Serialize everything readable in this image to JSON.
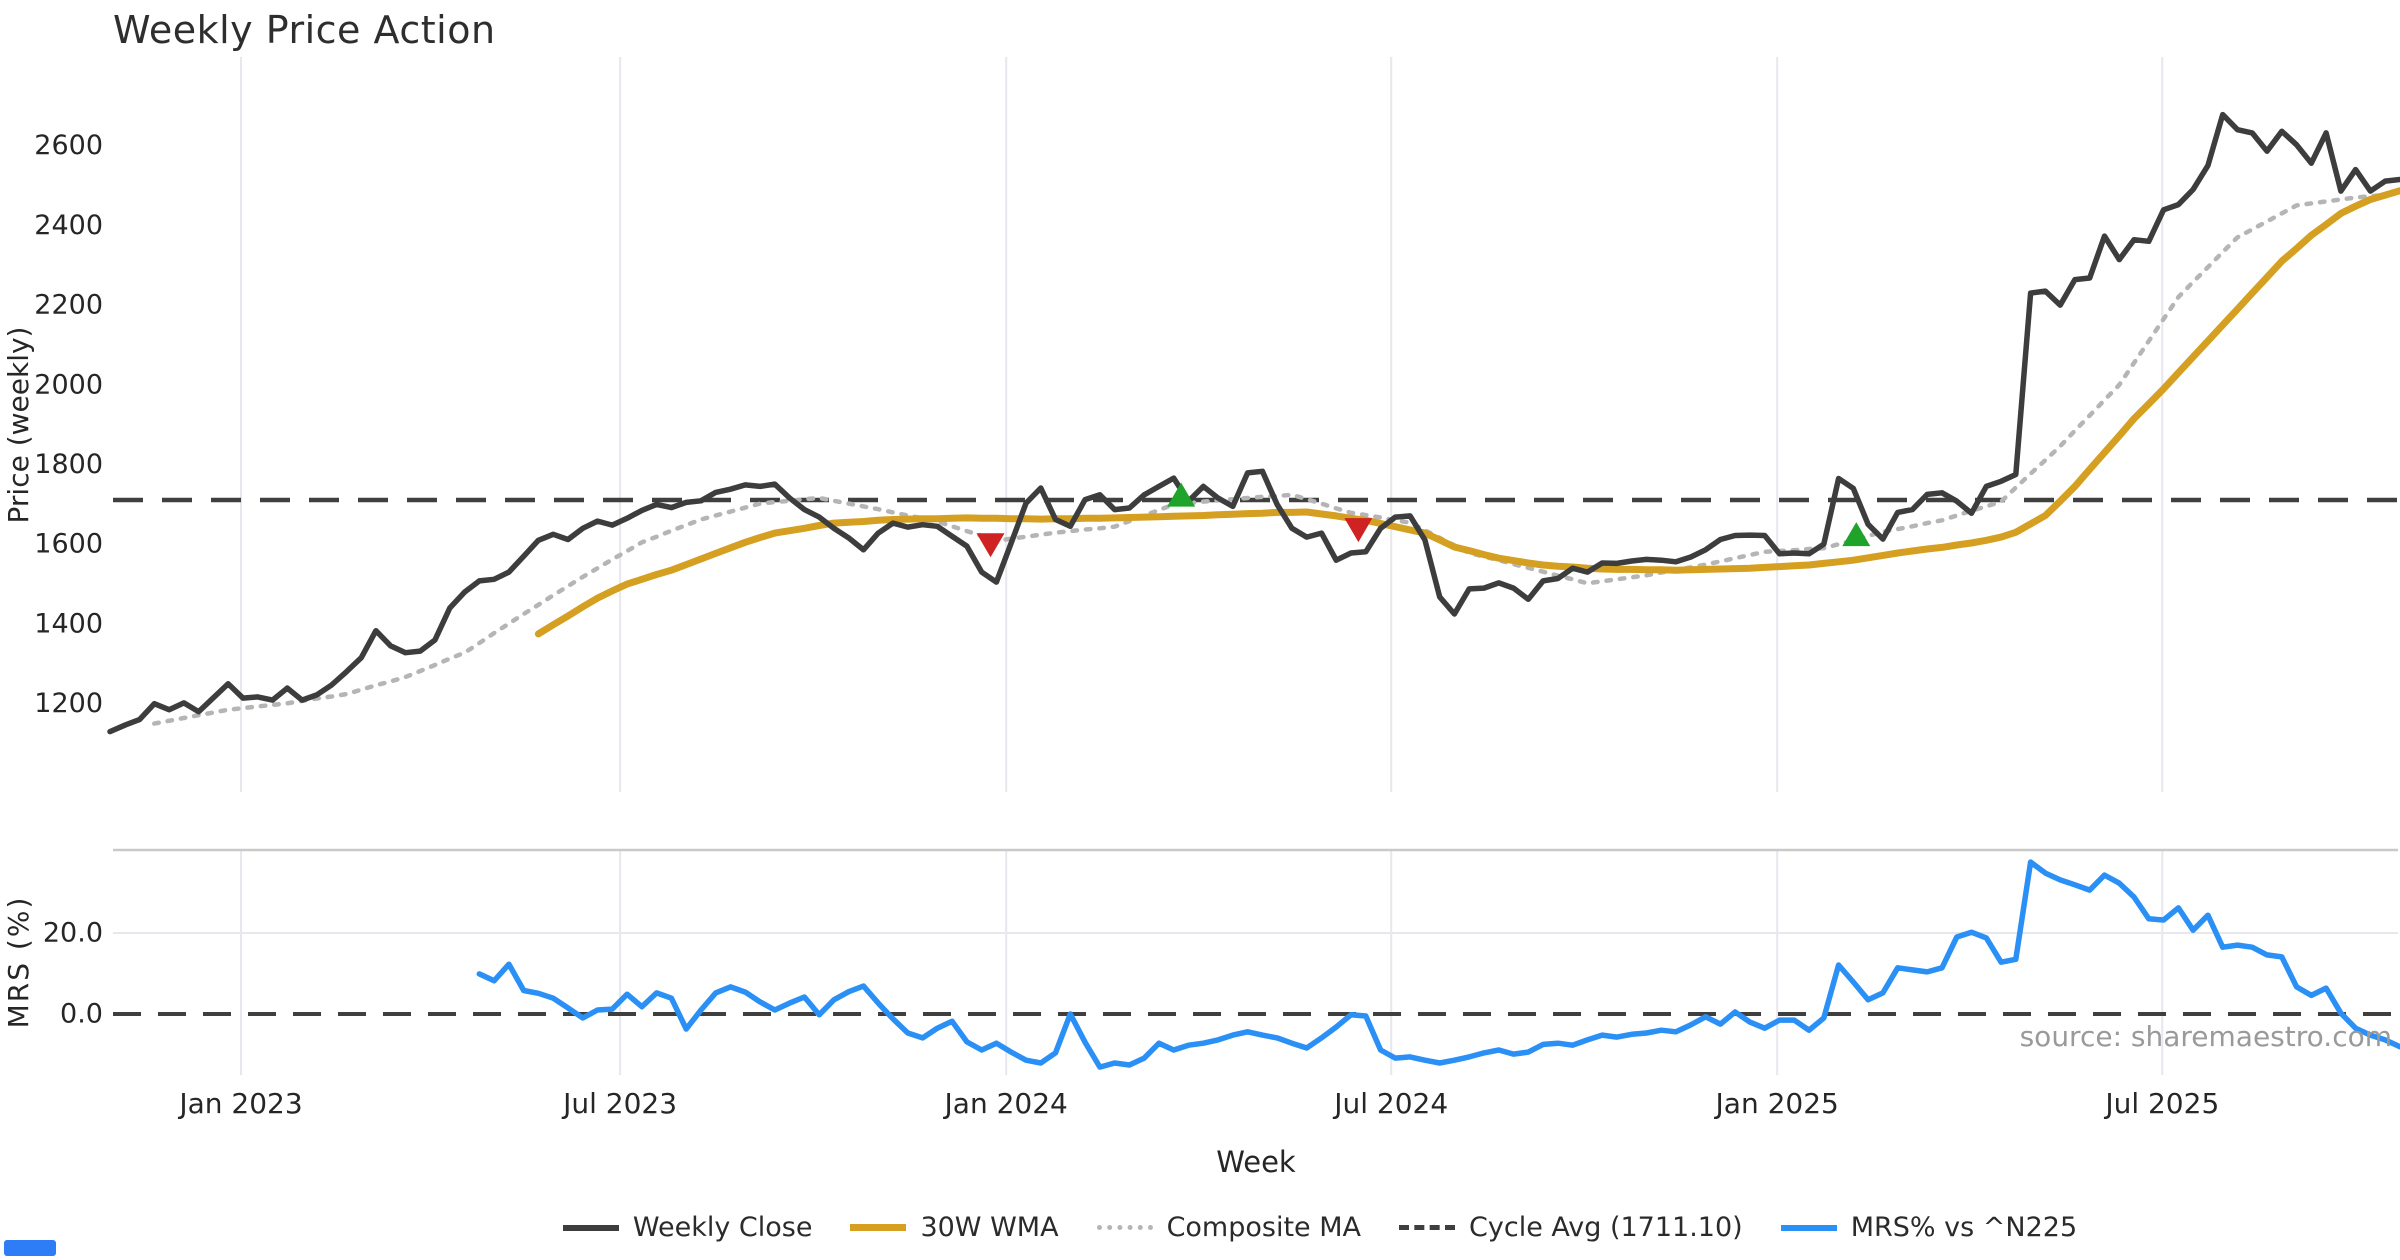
{
  "title": "Weekly Price Action",
  "xlabel": "Week",
  "source": "source: sharemaestro.com",
  "top_panel": {
    "ylabel": "Price (weekly)",
    "yticks": [
      1200,
      1400,
      1600,
      1800,
      2000,
      2200,
      2400,
      2600
    ],
    "cycle_avg": 1711.1
  },
  "bottom_panel": {
    "ylabel": "MRS (%)",
    "yticks": [
      {
        "label": "20.0",
        "value": 20
      },
      {
        "label": "0.0",
        "value": 0
      }
    ]
  },
  "x_ticks": [
    {
      "label": "Jan 2023",
      "week": 8.87
    },
    {
      "label": "Jul 2023",
      "week": 34.53
    },
    {
      "label": "Jan 2024",
      "week": 60.66
    },
    {
      "label": "Jul 2024",
      "week": 86.72
    },
    {
      "label": "Jan 2025",
      "week": 112.85
    },
    {
      "label": "Jul 2025",
      "week": 138.91
    }
  ],
  "legend": {
    "items": [
      {
        "label": "Weekly Close"
      },
      {
        "label": "30W WMA"
      },
      {
        "label": "Composite MA"
      },
      {
        "label": "Cycle Avg (1711.10)"
      },
      {
        "label": "MRS% vs ^N225"
      }
    ]
  },
  "colors": {
    "close": "#3d3d3d",
    "wma": "#d5a021",
    "composite": "#b5b5b5",
    "cycle": "#3f3f3f",
    "mrs": "#2b90f5",
    "sell": "#cf2222",
    "buy": "#1fa32b",
    "grid": "#e7e7ed",
    "spine": "#c9c9c9",
    "tick": "#262626",
    "source": "#9a9a9a"
  },
  "chart_data": [
    {
      "type": "line",
      "title": "Weekly Price Action",
      "ylabel": "Price (weekly)",
      "ylim": [
        980,
        2790
      ],
      "x_unit": "weekly points, Nov 2022 - Oct 2025; tick weeks per x_ticks",
      "series": [
        {
          "name": "Weekly Close",
          "style": "solid",
          "color": "#3d3d3d",
          "start_week": 0,
          "values": [
            1130,
            1146,
            1160,
            1200,
            1185,
            1202,
            1180,
            1215,
            1250,
            1214,
            1217,
            1209,
            1239,
            1209,
            1222,
            1247,
            1280,
            1315,
            1383,
            1345,
            1328,
            1332,
            1360,
            1440,
            1480,
            1508,
            1512,
            1530,
            1570,
            1610,
            1625,
            1612,
            1640,
            1658,
            1648,
            1665,
            1685,
            1700,
            1692,
            1705,
            1709,
            1730,
            1738,
            1749,
            1745,
            1751,
            1716,
            1687,
            1668,
            1640,
            1616,
            1586,
            1628,
            1653,
            1643,
            1649,
            1645,
            1620,
            1595,
            1530,
            1505,
            1603,
            1703,
            1741,
            1662,
            1645,
            1712,
            1724,
            1687,
            1691,
            1724,
            1745,
            1766,
            1708,
            1745,
            1716,
            1695,
            1779,
            1783,
            1700,
            1640,
            1618,
            1628,
            1560,
            1578,
            1581,
            1640,
            1668,
            1671,
            1611,
            1468,
            1425,
            1488,
            1490,
            1503,
            1490,
            1462,
            1508,
            1514,
            1540,
            1530,
            1553,
            1552,
            1558,
            1562,
            1560,
            1556,
            1568,
            1586,
            1612,
            1622,
            1623,
            1622,
            1576,
            1578,
            1576,
            1600,
            1765,
            1740,
            1650,
            1613,
            1680,
            1687,
            1725,
            1729,
            1708,
            1678,
            1745,
            1758,
            1775,
            2230,
            2235,
            2200,
            2264,
            2268,
            2373,
            2314,
            2364,
            2360,
            2439,
            2452,
            2490,
            2550,
            2678,
            2640,
            2632,
            2586,
            2636,
            2602,
            2556,
            2632,
            2486,
            2540,
            2486,
            2511,
            2515
          ]
        },
        {
          "name": "30W WMA",
          "style": "solid",
          "color": "#d5a021",
          "start_week": 29,
          "values": [
            1375,
            1398,
            1420,
            1443,
            1465,
            1483,
            1500,
            1512,
            1524,
            1535,
            1549,
            1563,
            1577,
            1591,
            1605,
            1617,
            1628,
            1634,
            1640,
            1647,
            1653,
            1655,
            1657,
            1660,
            1662,
            1663,
            1664,
            1664,
            1665,
            1666,
            1665,
            1665,
            1664,
            1664,
            1663,
            1664,
            1664,
            1665,
            1665,
            1666,
            1667,
            1668,
            1669,
            1670,
            1671,
            1672,
            1674,
            1675,
            1677,
            1678,
            1680,
            1680,
            1681,
            1676,
            1671,
            1665,
            1660,
            1652,
            1644,
            1636,
            1628,
            1611,
            1593,
            1584,
            1574,
            1565,
            1559,
            1553,
            1548,
            1545,
            1543,
            1540,
            1538,
            1537,
            1537,
            1536,
            1536,
            1535,
            1536,
            1537,
            1538,
            1539,
            1540,
            1542,
            1544,
            1546,
            1548,
            1552,
            1556,
            1560,
            1566,
            1572,
            1578,
            1583,
            1588,
            1592,
            1598,
            1603,
            1610,
            1618,
            1630,
            1651,
            1672,
            1708,
            1745,
            1788,
            1830,
            1872,
            1915,
            1952,
            1990,
            2030,
            2070,
            2110,
            2150,
            2190,
            2230,
            2270,
            2310,
            2342,
            2375,
            2402,
            2430,
            2448,
            2465,
            2476,
            2487
          ]
        },
        {
          "name": "Composite MA",
          "style": "dotted",
          "color": "#b5b5b5",
          "start_week": 3,
          "values": [
            1150,
            1157,
            1164,
            1171,
            1178,
            1185,
            1189,
            1193,
            1197,
            1201,
            1207,
            1213,
            1218,
            1224,
            1235,
            1246,
            1256,
            1267,
            1282,
            1297,
            1313,
            1328,
            1352,
            1377,
            1401,
            1425,
            1448,
            1472,
            1495,
            1518,
            1540,
            1562,
            1583,
            1605,
            1619,
            1634,
            1648,
            1662,
            1672,
            1682,
            1692,
            1702,
            1706,
            1709,
            1713,
            1716,
            1709,
            1702,
            1695,
            1688,
            1680,
            1672,
            1665,
            1657,
            1645,
            1633,
            1621,
            1609,
            1614,
            1619,
            1624,
            1629,
            1633,
            1637,
            1640,
            1644,
            1658,
            1672,
            1686,
            1700,
            1703,
            1707,
            1710,
            1713,
            1716,
            1719,
            1721,
            1724,
            1713,
            1702,
            1690,
            1679,
            1673,
            1667,
            1660,
            1654,
            1635,
            1616,
            1597,
            1578,
            1569,
            1560,
            1550,
            1541,
            1531,
            1521,
            1512,
            1502,
            1507,
            1512,
            1517,
            1522,
            1529,
            1536,
            1542,
            1549,
            1557,
            1565,
            1573,
            1581,
            1583,
            1585,
            1588,
            1590,
            1600,
            1610,
            1621,
            1631,
            1638,
            1645,
            1653,
            1660,
            1672,
            1684,
            1695,
            1707,
            1742,
            1777,
            1811,
            1846,
            1885,
            1923,
            1962,
            2000,
            2055,
            2110,
            2165,
            2220,
            2258,
            2295,
            2333,
            2370,
            2390,
            2410,
            2430,
            2450,
            2455,
            2460,
            2465,
            2470,
            2473,
            2477,
            2480
          ]
        },
        {
          "name": "Cycle Avg",
          "style": "dashed",
          "color": "#3f3f3f",
          "value": 1711.1
        }
      ],
      "markers": {
        "sell": [
          {
            "week": 59.6,
            "price": 1600
          },
          {
            "week": 84.5,
            "price": 1638
          }
        ],
        "buy": [
          {
            "week": 72.5,
            "price": 1722
          },
          {
            "week": 118.2,
            "price": 1623
          }
        ]
      }
    },
    {
      "type": "line",
      "ylabel": "MRS (%)",
      "yticks": [
        0,
        20
      ],
      "zero_line": true,
      "series": [
        {
          "name": "MRS% vs ^N225",
          "style": "solid",
          "color": "#2b90f5",
          "start_week": 25,
          "values": [
            9.9,
            8.2,
            12.3,
            5.8,
            5.1,
            3.9,
            1.5,
            -1.0,
            1.0,
            1.2,
            4.9,
            1.8,
            5.2,
            3.9,
            -3.7,
            1.0,
            5.2,
            6.7,
            5.4,
            3.0,
            1.0,
            2.7,
            4.2,
            -0.2,
            3.5,
            5.5,
            6.9,
            2.7,
            -1.2,
            -4.7,
            -5.9,
            -3.5,
            -1.8,
            -6.9,
            -8.9,
            -7.2,
            -9.4,
            -11.4,
            -12.1,
            -9.6,
            0.0,
            -7.0,
            -13.1,
            -12.1,
            -12.6,
            -10.9,
            -7.2,
            -8.9,
            -7.7,
            -7.2,
            -6.4,
            -5.2,
            -4.4,
            -5.2,
            -5.9,
            -7.2,
            -8.4,
            -5.9,
            -3.2,
            -0.2,
            -0.5,
            -8.9,
            -10.9,
            -10.6,
            -11.4,
            -12.1,
            -11.4,
            -10.6,
            -9.6,
            -8.9,
            -9.9,
            -9.4,
            -7.5,
            -7.2,
            -7.7,
            -6.4,
            -5.2,
            -5.7,
            -5.0,
            -4.7,
            -4.0,
            -4.4,
            -2.7,
            -0.7,
            -2.5,
            0.5,
            -2.0,
            -3.5,
            -1.5,
            -1.5,
            -4.0,
            -1.0,
            12.1,
            7.9,
            3.5,
            5.2,
            11.4,
            10.9,
            10.4,
            11.4,
            19.0,
            20.2,
            18.8,
            12.8,
            13.5,
            37.5,
            34.8,
            33.1,
            31.9,
            30.6,
            34.3,
            32.3,
            28.9,
            23.5,
            23.2,
            26.2,
            20.7,
            24.4,
            16.5,
            17.0,
            16.5,
            14.6,
            14.1,
            6.7,
            4.6,
            6.4,
            0.2,
            -3.5,
            -5.2,
            -6.4,
            -8.1
          ]
        }
      ]
    }
  ]
}
